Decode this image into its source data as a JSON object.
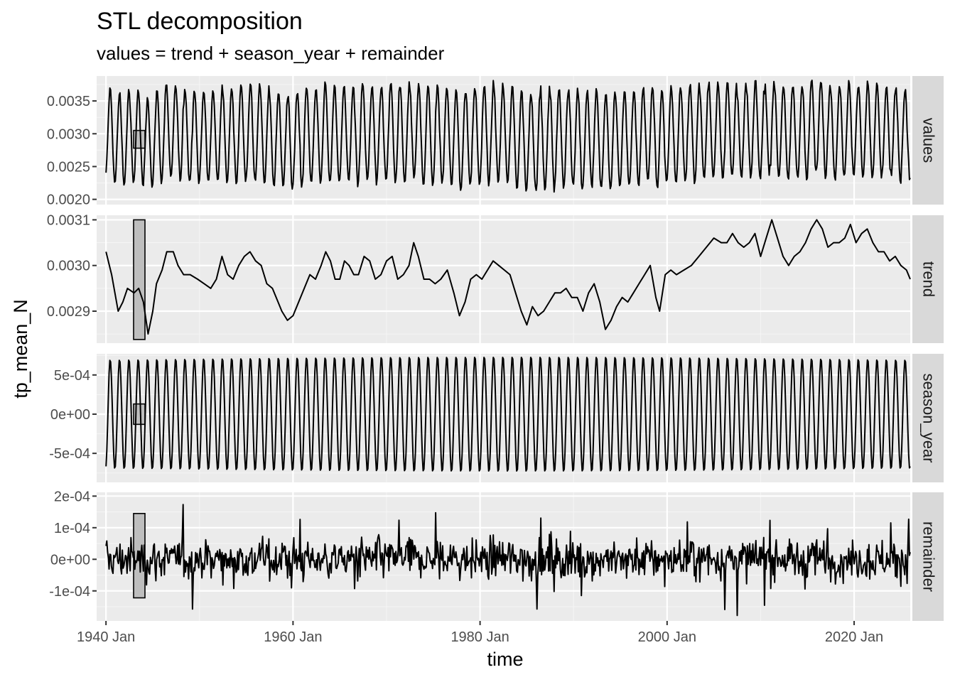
{
  "chart_data": {
    "type": "line",
    "title": "STL decomposition",
    "subtitle": "values = trend + season_year + remainder",
    "xlabel": "time",
    "ylabel": "tp_mean_N",
    "grid": true,
    "x_range": [
      1939.0,
      2026.0
    ],
    "x_ticks": [
      1940,
      1960,
      1980,
      2000,
      2020
    ],
    "x_tick_labels": [
      "1940 Jan",
      "1960 Jan",
      "1980 Jan",
      "2000 Jan",
      "2020 Jan"
    ],
    "panels": [
      {
        "name": "values",
        "strip_label": "values",
        "ylim": [
          0.00192,
          0.00388
        ],
        "y_ticks": [
          0.002,
          0.0025,
          0.003,
          0.0035
        ],
        "y_tick_labels": [
          "0.0020",
          "0.0025",
          "0.0030",
          "0.0035"
        ],
        "scale_bar": [
          0.00278,
          0.00305
        ],
        "description": "monthly series oscillating between about 0.0020 and 0.0037 with a 12-month cycle"
      },
      {
        "name": "trend",
        "strip_label": "trend",
        "ylim": [
          0.00283,
          0.00311
        ],
        "y_ticks": [
          0.0029,
          0.003,
          0.0031
        ],
        "y_tick_labels": [
          "0.0029",
          "0.0030",
          "0.0031"
        ],
        "scale_bar": [
          0.002838,
          0.0031
        ],
        "points": [
          [
            1940.0,
            0.00303
          ],
          [
            1940.6,
            0.00298
          ],
          [
            1941.3,
            0.0029
          ],
          [
            1941.8,
            0.00292
          ],
          [
            1942.3,
            0.00295
          ],
          [
            1943.0,
            0.00294
          ],
          [
            1943.5,
            0.00295
          ],
          [
            1944.0,
            0.00292
          ],
          [
            1944.5,
            0.00285
          ],
          [
            1945.0,
            0.0029
          ],
          [
            1945.4,
            0.00296
          ],
          [
            1946.0,
            0.00299
          ],
          [
            1946.5,
            0.00303
          ],
          [
            1947.2,
            0.00303
          ],
          [
            1947.7,
            0.003
          ],
          [
            1948.3,
            0.00298
          ],
          [
            1949.0,
            0.00298
          ],
          [
            1949.8,
            0.00297
          ],
          [
            1950.5,
            0.00296
          ],
          [
            1951.2,
            0.00295
          ],
          [
            1951.8,
            0.00297
          ],
          [
            1952.4,
            0.00302
          ],
          [
            1953.0,
            0.00298
          ],
          [
            1953.6,
            0.00297
          ],
          [
            1954.2,
            0.003
          ],
          [
            1954.8,
            0.00302
          ],
          [
            1955.4,
            0.00303
          ],
          [
            1956.0,
            0.00301
          ],
          [
            1956.6,
            0.003
          ],
          [
            1957.2,
            0.00296
          ],
          [
            1957.8,
            0.00295
          ],
          [
            1958.2,
            0.00293
          ],
          [
            1958.8,
            0.0029
          ],
          [
            1959.4,
            0.00288
          ],
          [
            1960.0,
            0.00289
          ],
          [
            1960.6,
            0.00292
          ],
          [
            1961.2,
            0.00295
          ],
          [
            1961.8,
            0.00298
          ],
          [
            1962.4,
            0.00297
          ],
          [
            1963.0,
            0.003
          ],
          [
            1963.5,
            0.00303
          ],
          [
            1964.0,
            0.00301
          ],
          [
            1964.5,
            0.00297
          ],
          [
            1965.0,
            0.00297
          ],
          [
            1965.5,
            0.00301
          ],
          [
            1966.0,
            0.003
          ],
          [
            1966.5,
            0.00298
          ],
          [
            1967.0,
            0.00298
          ],
          [
            1967.6,
            0.00302
          ],
          [
            1968.2,
            0.00301
          ],
          [
            1968.8,
            0.00297
          ],
          [
            1969.4,
            0.00298
          ],
          [
            1970.0,
            0.00301
          ],
          [
            1970.6,
            0.00302
          ],
          [
            1971.2,
            0.00297
          ],
          [
            1971.8,
            0.00298
          ],
          [
            1972.4,
            0.003
          ],
          [
            1972.9,
            0.00305
          ],
          [
            1973.4,
            0.00302
          ],
          [
            1974.0,
            0.00297
          ],
          [
            1974.6,
            0.00297
          ],
          [
            1975.2,
            0.00296
          ],
          [
            1975.8,
            0.00297
          ],
          [
            1976.5,
            0.00299
          ],
          [
            1977.2,
            0.00294
          ],
          [
            1977.8,
            0.00289
          ],
          [
            1978.4,
            0.00292
          ],
          [
            1979.0,
            0.00297
          ],
          [
            1979.6,
            0.00298
          ],
          [
            1980.2,
            0.00297
          ],
          [
            1980.8,
            0.00299
          ],
          [
            1981.4,
            0.00301
          ],
          [
            1982.0,
            0.003
          ],
          [
            1982.6,
            0.00299
          ],
          [
            1983.2,
            0.00298
          ],
          [
            1983.8,
            0.00294
          ],
          [
            1984.4,
            0.0029
          ],
          [
            1985.0,
            0.00287
          ],
          [
            1985.6,
            0.00291
          ],
          [
            1986.2,
            0.00289
          ],
          [
            1986.8,
            0.0029
          ],
          [
            1987.4,
            0.00292
          ],
          [
            1988.0,
            0.00294
          ],
          [
            1988.6,
            0.00294
          ],
          [
            1989.2,
            0.00295
          ],
          [
            1989.8,
            0.00293
          ],
          [
            1990.4,
            0.00293
          ],
          [
            1991.0,
            0.0029
          ],
          [
            1991.6,
            0.00294
          ],
          [
            1992.2,
            0.00296
          ],
          [
            1992.8,
            0.00292
          ],
          [
            1993.4,
            0.00286
          ],
          [
            1994.0,
            0.00288
          ],
          [
            1994.6,
            0.00291
          ],
          [
            1995.2,
            0.00293
          ],
          [
            1995.8,
            0.00292
          ],
          [
            1996.4,
            0.00294
          ],
          [
            1997.0,
            0.00296
          ],
          [
            1997.6,
            0.00298
          ],
          [
            1998.2,
            0.003
          ],
          [
            1998.8,
            0.00293
          ],
          [
            1999.2,
            0.0029
          ],
          [
            1999.8,
            0.00298
          ],
          [
            2000.4,
            0.00299
          ],
          [
            2001.0,
            0.00298
          ],
          [
            2001.8,
            0.00299
          ],
          [
            2002.6,
            0.003
          ],
          [
            2003.4,
            0.00302
          ],
          [
            2004.2,
            0.00304
          ],
          [
            2005.0,
            0.00306
          ],
          [
            2005.8,
            0.00305
          ],
          [
            2006.4,
            0.00305
          ],
          [
            2007.0,
            0.00307
          ],
          [
            2007.6,
            0.00305
          ],
          [
            2008.2,
            0.00304
          ],
          [
            2008.8,
            0.00305
          ],
          [
            2009.4,
            0.00307
          ],
          [
            2010.0,
            0.00302
          ],
          [
            2010.6,
            0.00306
          ],
          [
            2011.2,
            0.0031
          ],
          [
            2011.8,
            0.00306
          ],
          [
            2012.4,
            0.00302
          ],
          [
            2013.0,
            0.003
          ],
          [
            2013.6,
            0.00302
          ],
          [
            2014.2,
            0.00303
          ],
          [
            2014.8,
            0.00305
          ],
          [
            2015.4,
            0.00308
          ],
          [
            2016.0,
            0.0031
          ],
          [
            2016.6,
            0.00308
          ],
          [
            2017.2,
            0.00304
          ],
          [
            2017.8,
            0.00305
          ],
          [
            2018.4,
            0.00305
          ],
          [
            2019.0,
            0.00306
          ],
          [
            2019.6,
            0.00309
          ],
          [
            2020.2,
            0.00305
          ],
          [
            2020.8,
            0.00307
          ],
          [
            2021.4,
            0.00308
          ],
          [
            2022.0,
            0.00305
          ],
          [
            2022.6,
            0.00303
          ],
          [
            2023.2,
            0.00303
          ],
          [
            2023.8,
            0.00301
          ],
          [
            2024.4,
            0.00302
          ],
          [
            2025.0,
            0.003
          ],
          [
            2025.6,
            0.00299
          ],
          [
            2026.0,
            0.00297
          ]
        ]
      },
      {
        "name": "season_year",
        "strip_label": "season_year",
        "ylim": [
          -0.00087,
          0.00077
        ],
        "y_ticks": [
          -0.0005,
          0.0,
          0.0005
        ],
        "y_tick_labels": [
          "-5e-04",
          "0e+00",
          "5e-04"
        ],
        "scale_bar": [
          -0.00013,
          0.00013
        ],
        "description": "regular 12-month oscillation with amplitude about 7e-04"
      },
      {
        "name": "remainder",
        "strip_label": "remainder",
        "ylim": [
          -0.000195,
          0.000212
        ],
        "y_ticks": [
          -0.0001,
          0.0,
          0.0001,
          0.0002
        ],
        "y_tick_labels": [
          "-1e-04",
          "0e+00",
          "1e-04",
          "2e-04"
        ],
        "scale_bar": [
          -0.000122,
          0.000145
        ],
        "description": "irregular monthly noise mostly within +/-1e-04"
      }
    ]
  }
}
